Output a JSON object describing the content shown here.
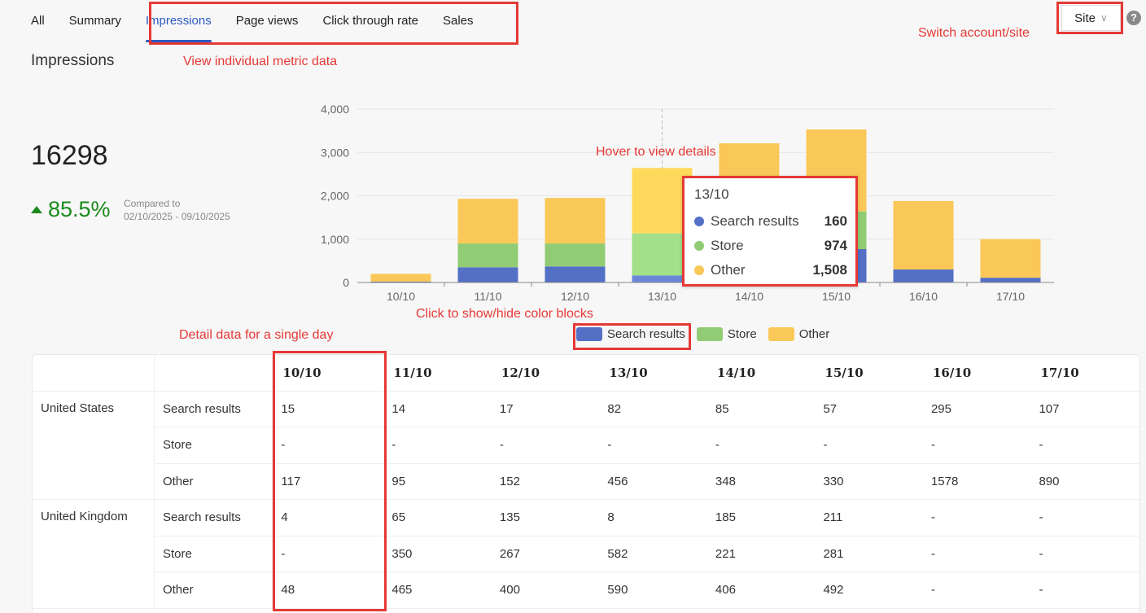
{
  "tabs": [
    {
      "label": "All",
      "active": false
    },
    {
      "label": "Summary",
      "active": false
    },
    {
      "label": "Impressions",
      "active": true
    },
    {
      "label": "Page views",
      "active": false
    },
    {
      "label": "Click through rate",
      "active": false
    },
    {
      "label": "Sales",
      "active": false
    }
  ],
  "site_selector": {
    "label": "Site",
    "chevron": "chevron-down-icon"
  },
  "help": {
    "label": "?"
  },
  "annotations": {
    "tabs_note": "View individual metric data",
    "site_note": "Switch account/site",
    "hover_note": "Hover to view details",
    "legend_note": "Click to show/hide color blocks",
    "day_note": "Detail data for a single day"
  },
  "metric": {
    "title": "Impressions",
    "total": "16298",
    "change": "85.5%",
    "compared_label": "Compared to",
    "compared_range": "02/10/2025 - 09/10/2025"
  },
  "colors": {
    "search": "#5470c6",
    "store": "#91cc75",
    "other": "#fac858",
    "accent": "#2a5bc4",
    "annotation": "#e53935",
    "positive": "#1a8a1a"
  },
  "chart_data": {
    "type": "bar",
    "stacked": true,
    "categories": [
      "10/10",
      "11/10",
      "12/10",
      "13/10",
      "14/10",
      "15/10",
      "16/10",
      "17/10"
    ],
    "series": [
      {
        "name": "Search results",
        "values": [
          20,
          350,
          370,
          160,
          100,
          770,
          300,
          110
        ]
      },
      {
        "name": "Store",
        "values": [
          0,
          550,
          530,
          974,
          300,
          870,
          0,
          0
        ]
      },
      {
        "name": "Other",
        "values": [
          180,
          1030,
          1050,
          1508,
          2810,
          1890,
          1580,
          890
        ]
      }
    ],
    "y_ticks": [
      "0",
      "1,000",
      "2,000",
      "3,000",
      "4,000"
    ],
    "ylim": [
      0,
      4000
    ],
    "grid": true,
    "legend": "bottom",
    "highlight_index": 3
  },
  "tooltip": {
    "date": "13/10",
    "rows": [
      {
        "name": "Search results",
        "value": "160"
      },
      {
        "name": "Store",
        "value": "974"
      },
      {
        "name": "Other",
        "value": "1,508"
      }
    ]
  },
  "legend": [
    {
      "name": "Search results"
    },
    {
      "name": "Store"
    },
    {
      "name": "Other"
    }
  ],
  "table": {
    "dates": [
      "10/10",
      "11/10",
      "12/10",
      "13/10",
      "14/10",
      "15/10",
      "16/10",
      "17/10"
    ],
    "groups": [
      {
        "country": "United States",
        "rows": [
          {
            "source": "Search results",
            "values": [
              "15",
              "14",
              "17",
              "82",
              "85",
              "57",
              "295",
              "107"
            ]
          },
          {
            "source": "Store",
            "values": [
              "-",
              "-",
              "-",
              "-",
              "-",
              "-",
              "-",
              "-"
            ]
          },
          {
            "source": "Other",
            "values": [
              "117",
              "95",
              "152",
              "456",
              "348",
              "330",
              "1578",
              "890"
            ]
          }
        ]
      },
      {
        "country": "United Kingdom",
        "rows": [
          {
            "source": "Search results",
            "values": [
              "4",
              "65",
              "135",
              "8",
              "185",
              "211",
              "-",
              "-"
            ]
          },
          {
            "source": "Store",
            "values": [
              "-",
              "350",
              "267",
              "582",
              "221",
              "281",
              "-",
              "-"
            ]
          },
          {
            "source": "Other",
            "values": [
              "48",
              "465",
              "400",
              "590",
              "406",
              "492",
              "-",
              "-"
            ]
          }
        ]
      }
    ]
  }
}
